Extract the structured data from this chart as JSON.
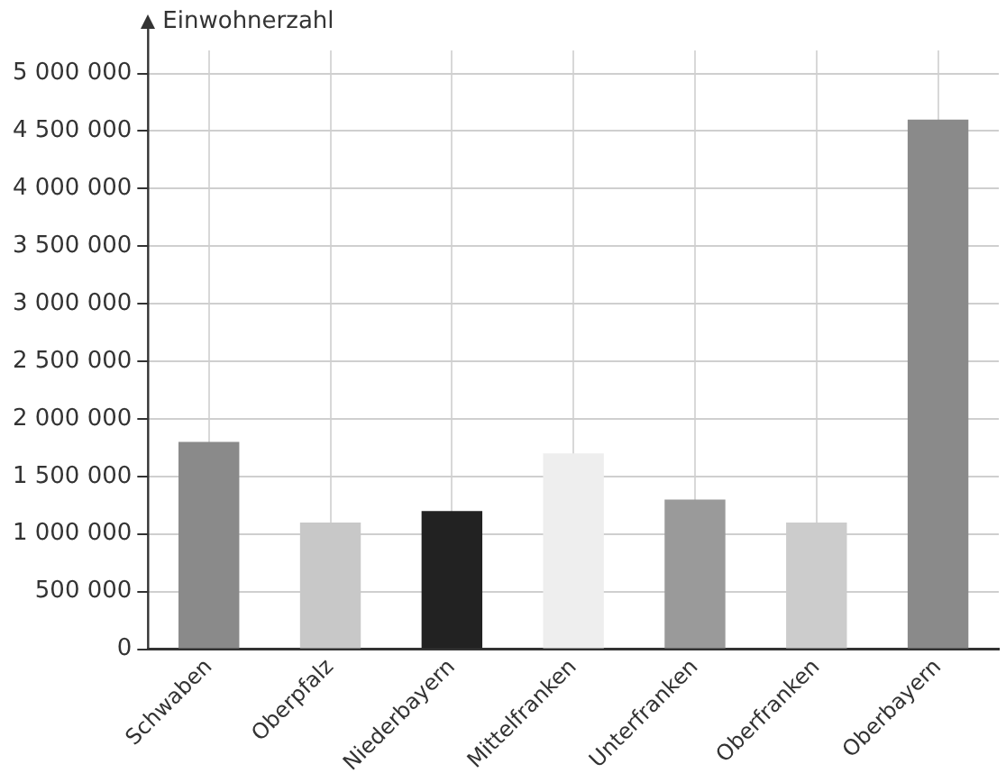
{
  "chart_data": {
    "type": "bar",
    "ylabel": "Einwohnerzahl",
    "categories": [
      "Schwaben",
      "Oberpfalz",
      "Niederbayern",
      "Mittelfranken",
      "Unterfranken",
      "Oberfranken",
      "Oberbayern"
    ],
    "values": [
      1800000,
      1100000,
      1200000,
      1700000,
      1300000,
      1100000,
      4600000
    ],
    "colors": [
      "#8a8a8a",
      "#c8c8c8",
      "#222222",
      "#eeeeee",
      "#9a9a9a",
      "#cccccc",
      "#8a8a8a"
    ],
    "ylim": [
      0,
      5200000
    ],
    "yticks": [
      {
        "value": 0,
        "label": "0"
      },
      {
        "value": 500000,
        "label": "500 000"
      },
      {
        "value": 1000000,
        "label": "1 000 000"
      },
      {
        "value": 1500000,
        "label": "1 500 000"
      },
      {
        "value": 2000000,
        "label": "2 000 000"
      },
      {
        "value": 2500000,
        "label": "2 500 000"
      },
      {
        "value": 3000000,
        "label": "3 000 000"
      },
      {
        "value": 3500000,
        "label": "3 500 000"
      },
      {
        "value": 4000000,
        "label": "4 000 000"
      },
      {
        "value": 4500000,
        "label": "4 500 000"
      },
      {
        "value": 5000000,
        "label": "5 000 000"
      }
    ],
    "grid": true,
    "legend": false
  }
}
